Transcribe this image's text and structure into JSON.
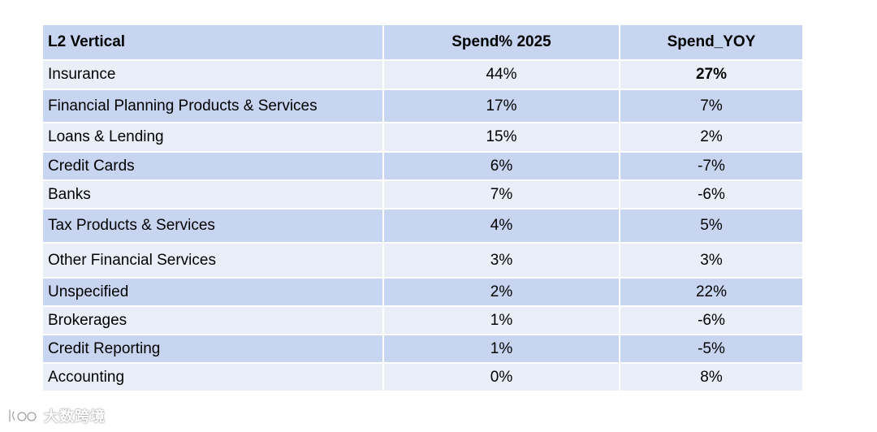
{
  "table": {
    "headers": [
      "L2 Vertical",
      "Spend% 2025",
      "Spend_YOY"
    ],
    "rows": [
      {
        "vertical": "Insurance",
        "spend_2025": "44%",
        "spend_yoy": "27%",
        "yoy_bold": true
      },
      {
        "vertical": "Financial Planning Products & Services",
        "spend_2025": "17%",
        "spend_yoy": "7%"
      },
      {
        "vertical": "Loans & Lending",
        "spend_2025": "15%",
        "spend_yoy": "2%"
      },
      {
        "vertical": "Credit Cards",
        "spend_2025": "6%",
        "spend_yoy": "-7%"
      },
      {
        "vertical": "Banks",
        "spend_2025": "7%",
        "spend_yoy": "-6%"
      },
      {
        "vertical": "Tax Products & Services",
        "spend_2025": "4%",
        "spend_yoy": "5%"
      },
      {
        "vertical": "Other Financial Services",
        "spend_2025": "3%",
        "spend_yoy": "3%"
      },
      {
        "vertical": "Unspecified",
        "spend_2025": "2%",
        "spend_yoy": "22%"
      },
      {
        "vertical": "Brokerages",
        "spend_2025": "1%",
        "spend_yoy": "-6%"
      },
      {
        "vertical": "Credit Reporting",
        "spend_2025": "1%",
        "spend_yoy": "-5%"
      },
      {
        "vertical": "Accounting",
        "spend_2025": "0%",
        "spend_yoy": "8%"
      }
    ]
  },
  "watermark": {
    "text": "大数跨境",
    "icon": "brand-logo-icon"
  },
  "colors": {
    "header_bg": "#c7d5f0",
    "row_light": "#e9eef9",
    "row_dark": "#c7d5f0"
  }
}
